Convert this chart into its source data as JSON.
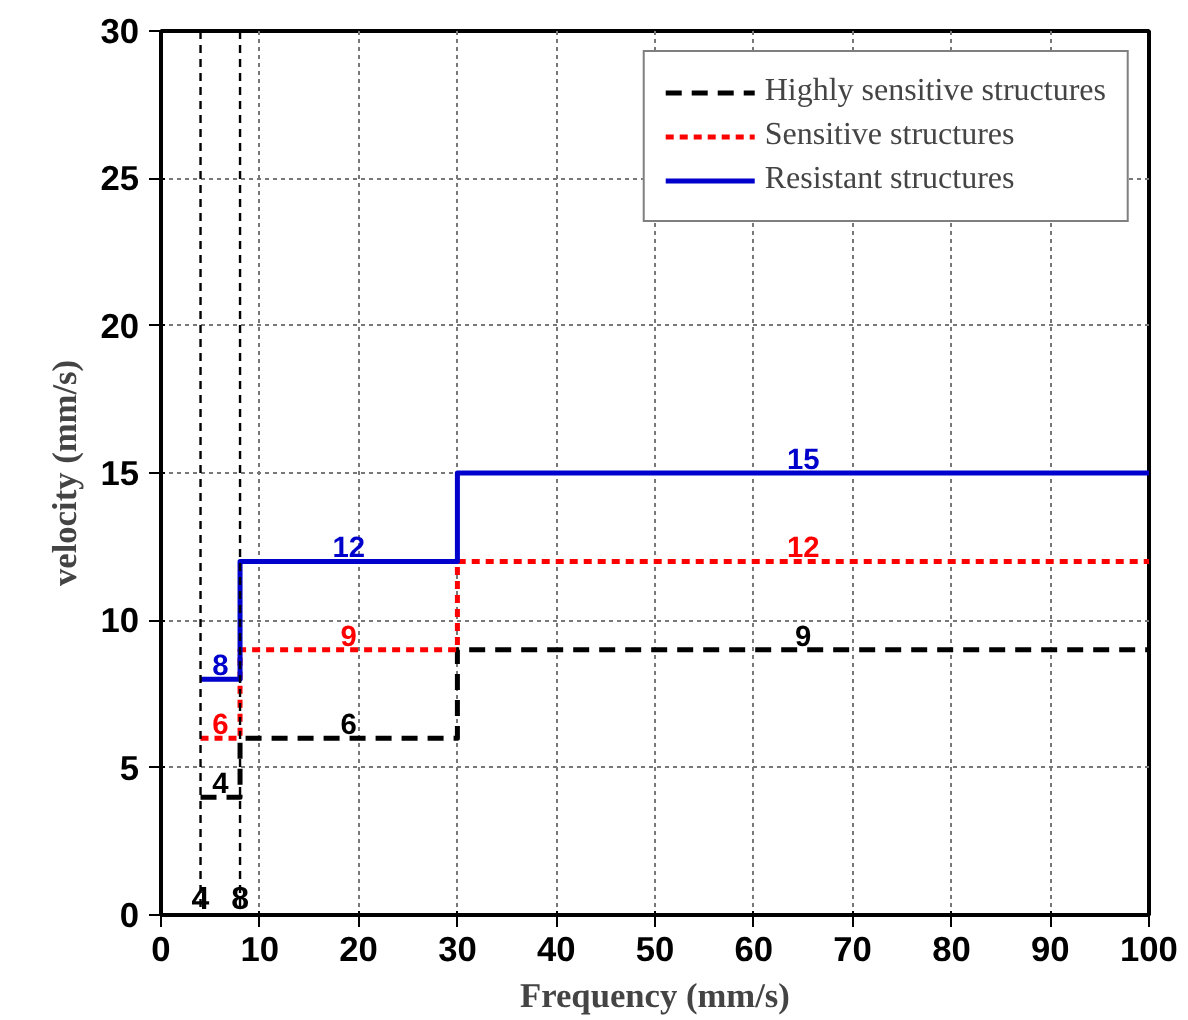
{
  "chart_data": {
    "type": "step",
    "xlabel": "Frequency (mm/s)",
    "ylabel": "velocity (mm/s)",
    "x": [
      4,
      8,
      30,
      100
    ],
    "series": [
      {
        "name": "Highly sensitive structures",
        "color": "#000000",
        "line_style": "dashed",
        "values": [
          4,
          6,
          9,
          9
        ]
      },
      {
        "name": "Sensitive structures",
        "color": "#ff0000",
        "line_style": "dotted",
        "values": [
          6,
          9,
          12,
          12
        ]
      },
      {
        "name": "Resistant structures",
        "color": "#0000cc",
        "line_style": "solid",
        "values": [
          8,
          12,
          15,
          15
        ]
      }
    ],
    "annotations": [
      {
        "text": "4",
        "x": 6,
        "y": 4
      },
      {
        "text": "6",
        "x": 19,
        "y": 6
      },
      {
        "text": "9",
        "x": 65,
        "y": 9
      },
      {
        "text": "6",
        "x": 6,
        "y": 6
      },
      {
        "text": "9",
        "x": 19,
        "y": 9
      },
      {
        "text": "12",
        "x": 65,
        "y": 12
      },
      {
        "text": "8",
        "x": 6,
        "y": 8
      },
      {
        "text": "12",
        "x": 19,
        "y": 12
      },
      {
        "text": "15",
        "x": 65,
        "y": 15
      }
    ],
    "xlim": [
      0,
      100
    ],
    "xticks": [
      0,
      10,
      20,
      30,
      40,
      50,
      60,
      70,
      80,
      90,
      100
    ],
    "ylim": [
      0,
      30
    ],
    "yticks": [
      0,
      5,
      10,
      15,
      20,
      25,
      30
    ],
    "ref_lines": [
      {
        "axis": "x",
        "value": 4,
        "label": "4",
        "color": "#000000",
        "line_style": "dotted"
      },
      {
        "axis": "x",
        "value": 8,
        "label": "8",
        "color": "#000000",
        "line_style": "dotted"
      }
    ],
    "grid": true,
    "legend": "top right"
  }
}
